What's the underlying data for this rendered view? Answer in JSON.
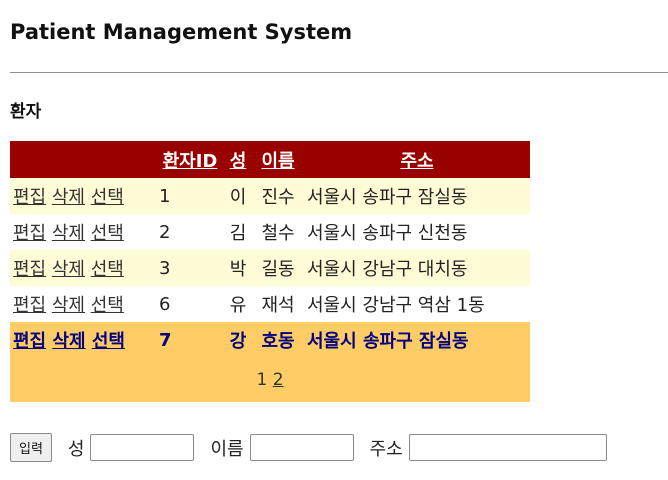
{
  "page": {
    "title": "Patient Management System",
    "section_title": "환자"
  },
  "colors": {
    "header_bg": "#990000",
    "row_alt_bg": "#fffbd6",
    "row_bg": "#ffffff",
    "selected_bg": "#ffcc66",
    "pager_bg": "#ffcc66"
  },
  "table": {
    "columns": {
      "patient_id": "환자ID",
      "last_name": "성",
      "first_name": "이름",
      "address": "주소"
    },
    "actions": {
      "edit": "편집",
      "delete": "삭제",
      "select": "선택"
    },
    "rows": [
      {
        "id": "1",
        "last": "이",
        "first": "진수",
        "address": "서울시 송파구 잠실동",
        "style": "alt"
      },
      {
        "id": "2",
        "last": "김",
        "first": "철수",
        "address": "서울시 송파구 신천동",
        "style": "normal"
      },
      {
        "id": "3",
        "last": "박",
        "first": "길동",
        "address": "서울시 강남구 대치동",
        "style": "alt"
      },
      {
        "id": "6",
        "last": "유",
        "first": "재석",
        "address": "서울시 강남구 역삼 1동",
        "style": "normal"
      },
      {
        "id": "7",
        "last": "강",
        "first": "호동",
        "address": "서울시 송파구 잠실동",
        "style": "selected"
      }
    ],
    "pager": {
      "current": "1",
      "next": "2"
    }
  },
  "form": {
    "submit_label": "입력",
    "last_name_label": "성",
    "last_name_value": "",
    "first_name_label": "이름",
    "first_name_value": "",
    "address_label": "주소",
    "address_value": ""
  }
}
